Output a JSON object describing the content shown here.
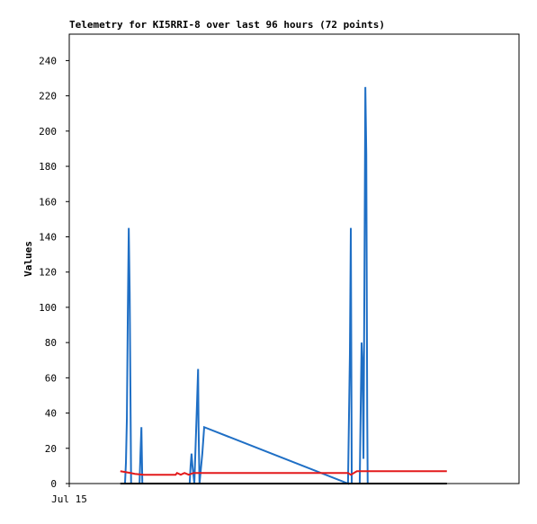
{
  "chart_data": {
    "type": "line",
    "title": "Telemetry for KI5RRI-8 over last 96 hours (72 points)",
    "y_label": "Values",
    "xlim": [
      0,
      96
    ],
    "xticks": [
      {
        "value": 0,
        "label": "Jul 15"
      }
    ],
    "ylim": [
      0,
      255
    ],
    "yticks": [
      0,
      20,
      40,
      60,
      80,
      100,
      120,
      140,
      160,
      180,
      200,
      220,
      240
    ],
    "series": [
      {
        "color": "#1f6fc5",
        "x": [
          11.9,
          12.1,
          12.3,
          12.5,
          12.7,
          12.9,
          13.1,
          13.2,
          15.0,
          15.2,
          15.4,
          15.6,
          25.7,
          25.9,
          26.1,
          26.3,
          26.7,
          27.3,
          27.5,
          27.6,
          27.8,
          28.4,
          28.8,
          59.5,
          59.9,
          60.1,
          60.3,
          62.0,
          62.2,
          62.4,
          62.6,
          62.8,
          63.0,
          63.2,
          63.4,
          63.6,
          63.7
        ],
        "values": [
          0,
          12,
          37,
          97,
          145,
          108,
          37,
          0,
          0,
          17,
          32,
          0,
          0,
          10,
          17,
          10,
          0,
          48,
          65,
          32,
          0,
          17,
          32,
          0,
          73,
          145,
          0,
          0,
          41,
          80,
          67,
          14,
          113,
          225,
          187,
          38,
          0
        ]
      },
      {
        "color": "#e31a1c",
        "x": [
          10.9,
          13.1,
          14.0,
          15.9,
          22.7,
          23.0,
          23.8,
          24.6,
          25.5,
          26.5,
          29.4,
          59.5,
          60.1,
          61.4,
          80.6
        ],
        "values": [
          7,
          6,
          5.5,
          5,
          5,
          6,
          5,
          6,
          5,
          6,
          6,
          6,
          5,
          7,
          7
        ]
      },
      {
        "color": "#000000",
        "x": [
          10.9,
          80.6
        ],
        "values": [
          0,
          0
        ]
      }
    ]
  }
}
